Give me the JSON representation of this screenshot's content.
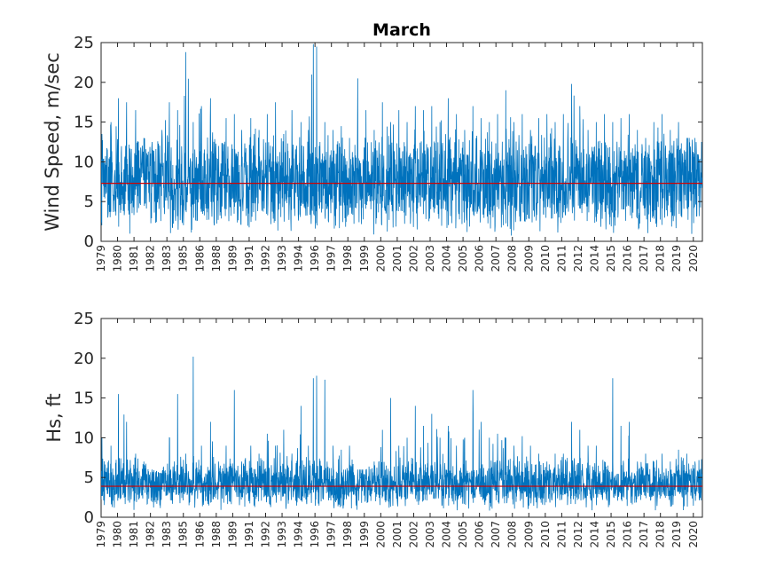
{
  "colors": {
    "series": "#0072BD",
    "mean": "#D00000",
    "axis": "#262626",
    "background": "#ffffff"
  },
  "chart_data": [
    {
      "type": "line",
      "title": "March",
      "xlabel": "",
      "ylabel": "Wind Speed, m/sec",
      "ylim": [
        0,
        25
      ],
      "yticks": [
        0,
        5,
        10,
        15,
        20,
        25
      ],
      "xlim": [
        1979.0,
        2015.55
      ],
      "xticks": [
        1979,
        1980,
        1981,
        1982,
        1983,
        1984,
        1985,
        1986,
        1987,
        1988,
        1989,
        1990,
        1991,
        1992,
        1993,
        1994,
        1995,
        1996,
        1997,
        1998,
        1999,
        2000,
        2001,
        2002,
        2003,
        2004,
        2005,
        2006,
        2007,
        2008,
        2009,
        2010,
        2011,
        2012,
        2013,
        2014,
        2015
      ],
      "xtick_labels": [
        "1979",
        "1980",
        "1981",
        "1982",
        "1983",
        "1985",
        "1986",
        "1988",
        "1989",
        "1991",
        "1992",
        "1993",
        "1994",
        "1996",
        "1997",
        "1998",
        "1999",
        "2000",
        "2001",
        "2002",
        "2003",
        "2004",
        "2005",
        "2006",
        "2007",
        "2008",
        "2009",
        "2010",
        "2011",
        "2012",
        "2014",
        "2015",
        "2016",
        "2017",
        "2018",
        "2019",
        "2020"
      ],
      "grid": false,
      "series": [
        {
          "x": [
            1979.05,
            1979.6,
            1980.05,
            1980.55,
            1981.1,
            1981.6,
            1982.1,
            1982.7,
            1983.15,
            1983.65,
            1984.15,
            1984.6,
            1985.1,
            1985.65,
            1986.15,
            1986.6,
            1987.1,
            1987.55,
            1988.1,
            1988.6,
            1989.1,
            1989.6,
            1990.1,
            1990.6,
            1991.15,
            1991.6,
            1991.9,
            1992.1,
            1992.6,
            1993.1,
            1993.6,
            1994.1,
            1994.6,
            1995.1,
            1995.6,
            1996.1,
            1996.6,
            1997.1,
            1997.6,
            1998.1,
            1998.6,
            1999.1,
            1999.6,
            2000.1,
            2000.6,
            2001.1,
            2001.6,
            2002.1,
            2002.6,
            2003.1,
            2003.6,
            2004.1,
            2004.6,
            2005.1,
            2005.6,
            2006.1,
            2006.6,
            2007.1,
            2007.6,
            2008.1,
            2008.6,
            2009.1,
            2009.6,
            2010.1,
            2010.6,
            2011.1,
            2011.6,
            2012.1,
            2012.6,
            2013.1,
            2013.6,
            2014.1,
            2014.6,
            2015.1,
            2015.5
          ],
          "y": [
            13.5,
            15,
            18,
            17.5,
            16.5,
            13,
            12.5,
            14,
            17.5,
            16.5,
            23.8,
            15,
            17,
            18,
            12,
            15.5,
            16,
            14,
            15.5,
            14,
            16,
            17.5,
            13.5,
            16.5,
            15,
            14,
            24.8,
            24.5,
            15,
            14,
            14.5,
            13,
            20.5,
            16.5,
            14,
            17.5,
            15,
            16.5,
            15,
            17,
            16.5,
            17,
            15,
            18,
            16,
            14,
            17,
            15.5,
            15,
            16,
            19,
            15,
            16,
            14,
            15.5,
            16,
            15,
            16,
            19.8,
            17,
            14,
            15,
            16,
            15,
            15.5,
            16,
            14,
            13,
            15,
            16,
            14,
            15,
            13,
            13,
            12.5
          ],
          "mean": 7.3
        }
      ]
    },
    {
      "type": "line",
      "title": "",
      "xlabel": "",
      "ylabel": "Hs, ft",
      "ylim": [
        0,
        25
      ],
      "yticks": [
        0,
        5,
        10,
        15,
        20,
        25
      ],
      "xlim": [
        1979.0,
        2015.55
      ],
      "xticks": [
        1979,
        1980,
        1981,
        1982,
        1983,
        1984,
        1985,
        1986,
        1987,
        1988,
        1989,
        1990,
        1991,
        1992,
        1993,
        1994,
        1995,
        1996,
        1997,
        1998,
        1999,
        2000,
        2001,
        2002,
        2003,
        2004,
        2005,
        2006,
        2007,
        2008,
        2009,
        2010,
        2011,
        2012,
        2013,
        2014,
        2015
      ],
      "xtick_labels": [
        "1979",
        "1980",
        "1981",
        "1982",
        "1983",
        "1985",
        "1986",
        "1988",
        "1989",
        "1991",
        "1992",
        "1993",
        "1994",
        "1996",
        "1997",
        "1998",
        "1999",
        "2000",
        "2001",
        "2002",
        "2003",
        "2004",
        "2005",
        "2006",
        "2007",
        "2008",
        "2009",
        "2010",
        "2011",
        "2012",
        "2014",
        "2015",
        "2016",
        "2017",
        "2018",
        "2019",
        "2020"
      ],
      "grid": false,
      "series": [
        {
          "x": [
            1979.05,
            1979.6,
            1980.05,
            1980.55,
            1981.1,
            1981.6,
            1982.1,
            1982.7,
            1983.15,
            1983.65,
            1984.15,
            1984.6,
            1985.1,
            1985.65,
            1986.15,
            1986.6,
            1987.1,
            1987.55,
            1988.1,
            1988.6,
            1989.1,
            1989.6,
            1990.1,
            1990.6,
            1991.15,
            1991.6,
            1991.9,
            1992.1,
            1992.6,
            1993.1,
            1993.6,
            1994.1,
            1994.6,
            1995.1,
            1995.6,
            1996.1,
            1996.6,
            1997.1,
            1997.6,
            1998.1,
            1998.6,
            1999.1,
            1999.6,
            2000.1,
            2000.6,
            2001.1,
            2001.6,
            2002.1,
            2002.6,
            2003.1,
            2003.6,
            2004.1,
            2004.6,
            2005.1,
            2005.6,
            2006.1,
            2006.6,
            2007.1,
            2007.6,
            2008.1,
            2008.6,
            2009.1,
            2009.6,
            2010.1,
            2010.6,
            2011.1,
            2011.6,
            2012.1,
            2012.6,
            2013.1,
            2013.6,
            2014.1,
            2014.6,
            2015.1,
            2015.5
          ],
          "y": [
            10,
            9,
            15.5,
            12,
            8,
            7,
            6,
            5.5,
            10,
            15.5,
            8,
            20.2,
            9,
            12,
            7,
            9,
            16,
            7,
            9,
            8,
            10.5,
            9,
            11,
            8,
            14,
            9,
            17.5,
            17.8,
            17.3,
            9,
            8.5,
            9,
            6,
            6,
            7,
            11,
            15,
            9,
            10,
            14,
            11.5,
            13,
            10,
            11.5,
            9,
            10,
            16,
            12,
            10,
            10.5,
            10,
            9,
            10.2,
            9,
            8,
            7,
            8,
            8,
            12,
            11,
            9,
            9,
            7,
            17.5,
            11.5,
            12,
            7,
            8,
            7,
            8,
            7,
            8.5,
            8,
            7,
            7.3
          ],
          "mean": 3.9
        }
      ]
    }
  ]
}
